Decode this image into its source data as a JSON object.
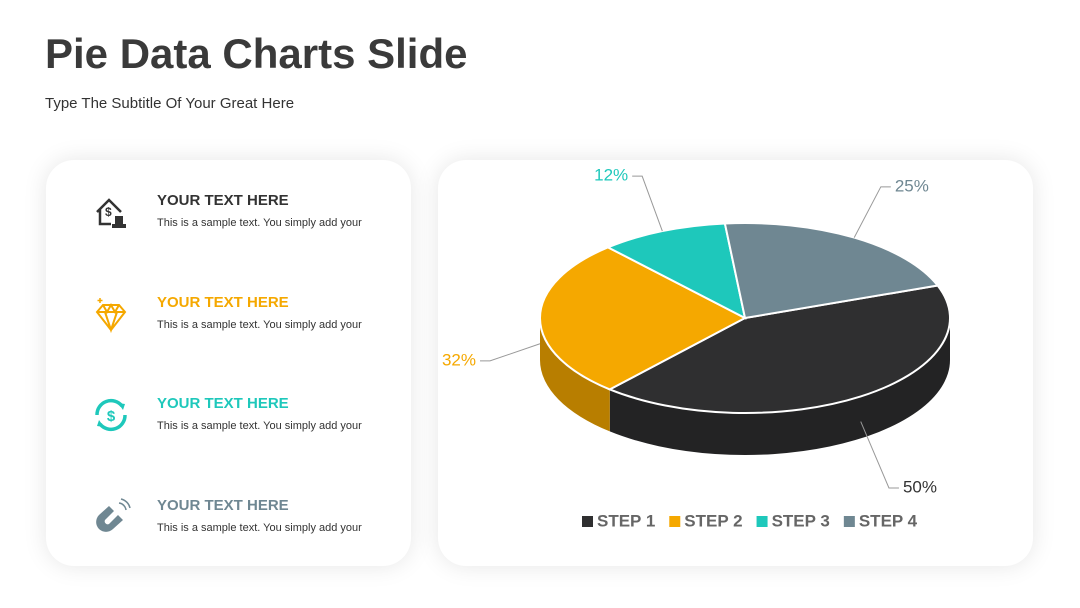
{
  "header": {
    "title": "Pie Data Charts Slide",
    "subtitle": "Type The Subtitle Of Your Great Here"
  },
  "items": [
    {
      "title": "YOUR TEXT HERE",
      "text": "This is a sample text. You simply add your"
    },
    {
      "title": "YOUR TEXT HERE",
      "text": "This is a sample text. You simply add your"
    },
    {
      "title": "YOUR TEXT HERE",
      "text": "This is a sample text. You simply add your"
    },
    {
      "title": "YOUR TEXT HERE",
      "text": "This is a sample text. You simply add your"
    }
  ],
  "chart_data": {
    "type": "pie",
    "categories": [
      "STEP 1",
      "STEP 2",
      "STEP 3",
      "STEP 4"
    ],
    "values": [
      50,
      32,
      12,
      25
    ],
    "value_labels": [
      "50%",
      "32%",
      "12%",
      "25%"
    ],
    "colors": [
      "#2f2f30",
      "#f5a800",
      "#1ec8bb",
      "#6f8792"
    ],
    "legend": "bottom"
  }
}
